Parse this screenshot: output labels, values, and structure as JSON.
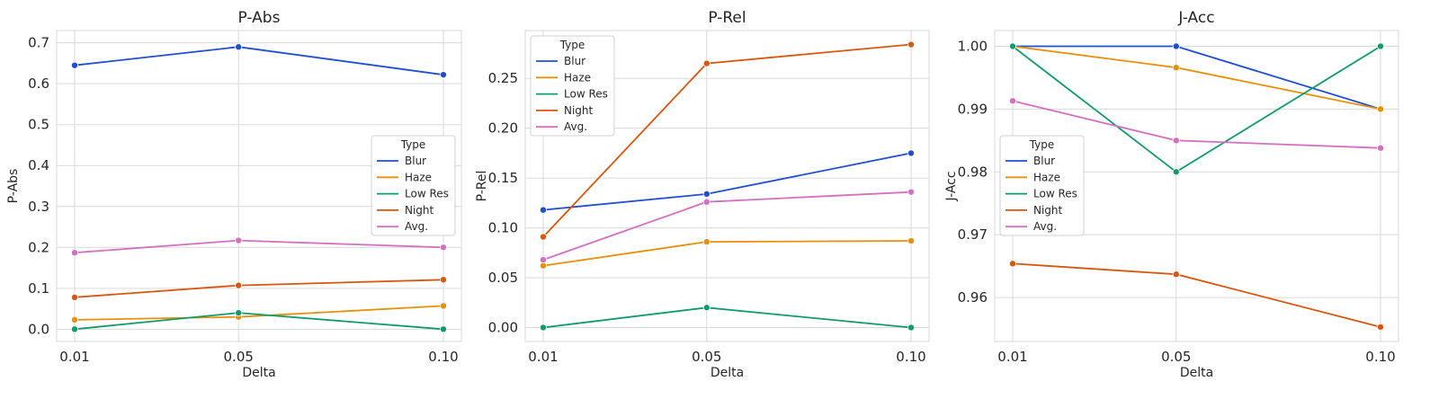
{
  "chart_data": [
    {
      "type": "line",
      "title": "P-Abs",
      "xlabel": "Delta",
      "ylabel": "P-Abs",
      "categories": [
        "0.01",
        "0.05",
        "0.10"
      ],
      "ylim": [
        -0.03,
        0.73
      ],
      "yticks": [
        "0.0",
        "0.1",
        "0.2",
        "0.3",
        "0.4",
        "0.5",
        "0.6",
        "0.7"
      ],
      "grid": true,
      "legend": {
        "title": "Type",
        "placement": "center-right"
      },
      "series": [
        {
          "name": "Blur",
          "color": "#1f4fd1",
          "values": [
            0.645,
            0.69,
            0.622
          ]
        },
        {
          "name": "Haze",
          "color": "#e8900c",
          "values": [
            0.023,
            0.03,
            0.057
          ]
        },
        {
          "name": "Low Res",
          "color": "#0f9b6a",
          "values": [
            0.0,
            0.04,
            0.0
          ]
        },
        {
          "name": "Night",
          "color": "#d9560e",
          "values": [
            0.078,
            0.107,
            0.121
          ]
        },
        {
          "name": "Avg.",
          "color": "#d470c2",
          "values": [
            0.187,
            0.217,
            0.2
          ]
        }
      ]
    },
    {
      "type": "line",
      "title": "P-Rel",
      "xlabel": "Delta",
      "ylabel": "P-Rel",
      "categories": [
        "0.01",
        "0.05",
        "0.10"
      ],
      "ylim": [
        -0.014,
        0.298
      ],
      "yticks": [
        "0.00",
        "0.05",
        "0.10",
        "0.15",
        "0.20",
        "0.25"
      ],
      "grid": true,
      "legend": {
        "title": "Type",
        "placement": "upper-left"
      },
      "series": [
        {
          "name": "Blur",
          "color": "#1f4fd1",
          "values": [
            0.118,
            0.134,
            0.175
          ]
        },
        {
          "name": "Haze",
          "color": "#e8900c",
          "values": [
            0.062,
            0.086,
            0.087
          ]
        },
        {
          "name": "Low Res",
          "color": "#0f9b6a",
          "values": [
            0.0,
            0.02,
            0.0
          ]
        },
        {
          "name": "Night",
          "color": "#d9560e",
          "values": [
            0.091,
            0.265,
            0.284
          ]
        },
        {
          "name": "Avg.",
          "color": "#d470c2",
          "values": [
            0.068,
            0.126,
            0.136
          ]
        }
      ]
    },
    {
      "type": "line",
      "title": "J-Acc",
      "xlabel": "Delta",
      "ylabel": "J-Acc",
      "categories": [
        "0.01",
        "0.05",
        "0.10"
      ],
      "ylim": [
        0.953,
        1.0025
      ],
      "yticks": [
        "0.96",
        "0.97",
        "0.98",
        "0.99",
        "1.00"
      ],
      "grid": true,
      "legend": {
        "title": "Type",
        "placement": "center-left"
      },
      "series": [
        {
          "name": "Blur",
          "color": "#1f4fd1",
          "values": [
            1.0,
            1.0,
            0.99
          ]
        },
        {
          "name": "Haze",
          "color": "#e8900c",
          "values": [
            1.0,
            0.9966,
            0.99
          ]
        },
        {
          "name": "Low Res",
          "color": "#0f9b6a",
          "values": [
            1.0,
            0.98,
            1.0
          ]
        },
        {
          "name": "Night",
          "color": "#d9560e",
          "values": [
            0.9654,
            0.9637,
            0.9553
          ]
        },
        {
          "name": "Avg.",
          "color": "#d470c2",
          "values": [
            0.9913,
            0.985,
            0.9838
          ]
        }
      ]
    }
  ]
}
